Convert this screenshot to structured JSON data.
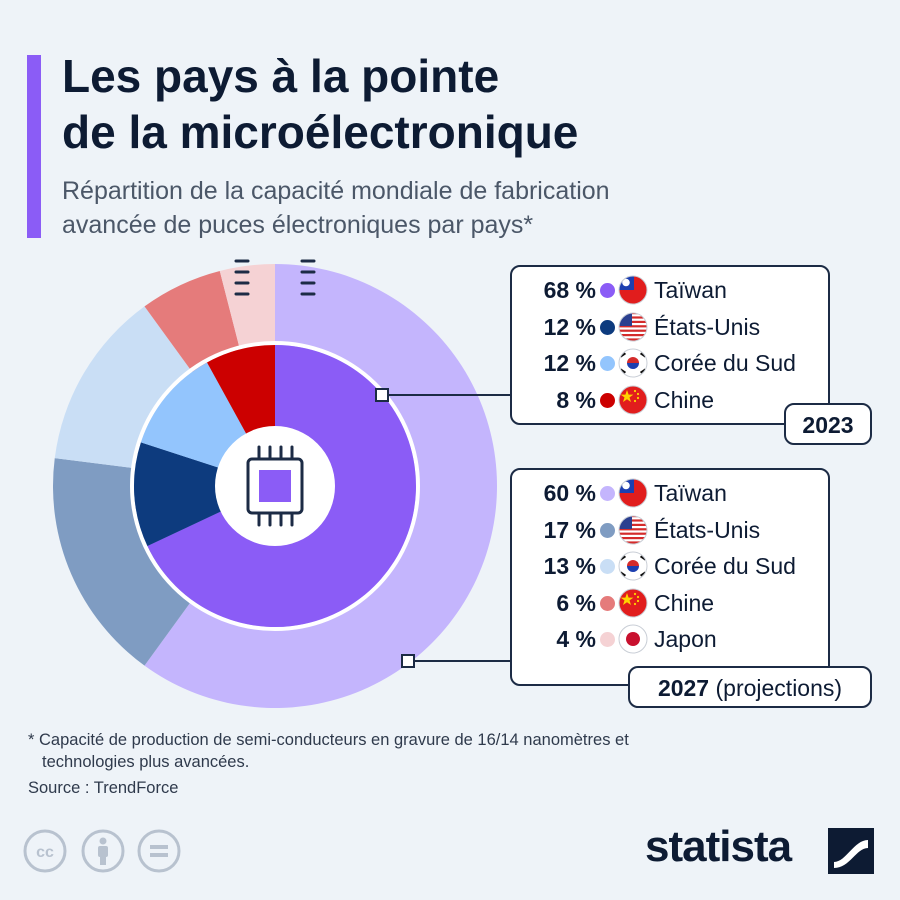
{
  "title_line1": "Les pays à la pointe",
  "title_line2": "de la microélectronique",
  "subtitle_line1": "Répartition de la capacité mondiale de fabrication",
  "subtitle_line2": "avancée de puces électroniques par pays*",
  "chart_data": {
    "type": "pie",
    "title": "Les pays à la pointe de la microélectronique",
    "variant": "nested-donut",
    "series": [
      {
        "name": "2023",
        "ring": "inner",
        "labels": [
          "Taïwan",
          "États-Unis",
          "Corée du Sud",
          "Chine"
        ],
        "values": [
          68,
          12,
          12,
          8
        ],
        "colors": [
          "#8b5cf6",
          "#0d3b7e",
          "#93c5fd",
          "#cc0000"
        ]
      },
      {
        "name": "2027 (projections)",
        "ring": "outer",
        "labels": [
          "Taïwan",
          "États-Unis",
          "Corée du Sud",
          "Chine",
          "Japon"
        ],
        "values": [
          60,
          17,
          13,
          6,
          4
        ],
        "colors": [
          "#c4b5fd",
          "#7f9cc2",
          "#c9def5",
          "#e57b7b",
          "#f5d2d4"
        ]
      }
    ],
    "unit": "%"
  },
  "legend_2023": [
    {
      "pct": "68 %",
      "country": "Taïwan",
      "flag": "flag-taiwan"
    },
    {
      "pct": "12 %",
      "country": "États-Unis",
      "flag": "flag-usa"
    },
    {
      "pct": "12 %",
      "country": "Corée du Sud",
      "flag": "flag-south-korea"
    },
    {
      "pct": "8 %",
      "country": "Chine",
      "flag": "flag-china"
    }
  ],
  "legend_2027": [
    {
      "pct": "60 %",
      "country": "Taïwan",
      "flag": "flag-taiwan"
    },
    {
      "pct": "17 %",
      "country": "États-Unis",
      "flag": "flag-usa"
    },
    {
      "pct": "13 %",
      "country": "Corée du Sud",
      "flag": "flag-south-korea"
    },
    {
      "pct": "6 %",
      "country": "Chine",
      "flag": "flag-china"
    },
    {
      "pct": "4 %",
      "country": "Japon",
      "flag": "flag-japan"
    }
  ],
  "badge_2023": "2023",
  "badge_2027_year": "2027",
  "badge_2027_note": " (projections)",
  "footnote_line1": "* Capacité de production de semi-conducteurs en gravure de 16/14 nanomètres et",
  "footnote_line2": "technologies plus avancées.",
  "source": "Source : TrendForce",
  "brand": "statista",
  "icons": [
    "chip-icon",
    "cc-license-icon",
    "attribution-icon",
    "no-derivatives-icon",
    "statista-logo-icon"
  ]
}
